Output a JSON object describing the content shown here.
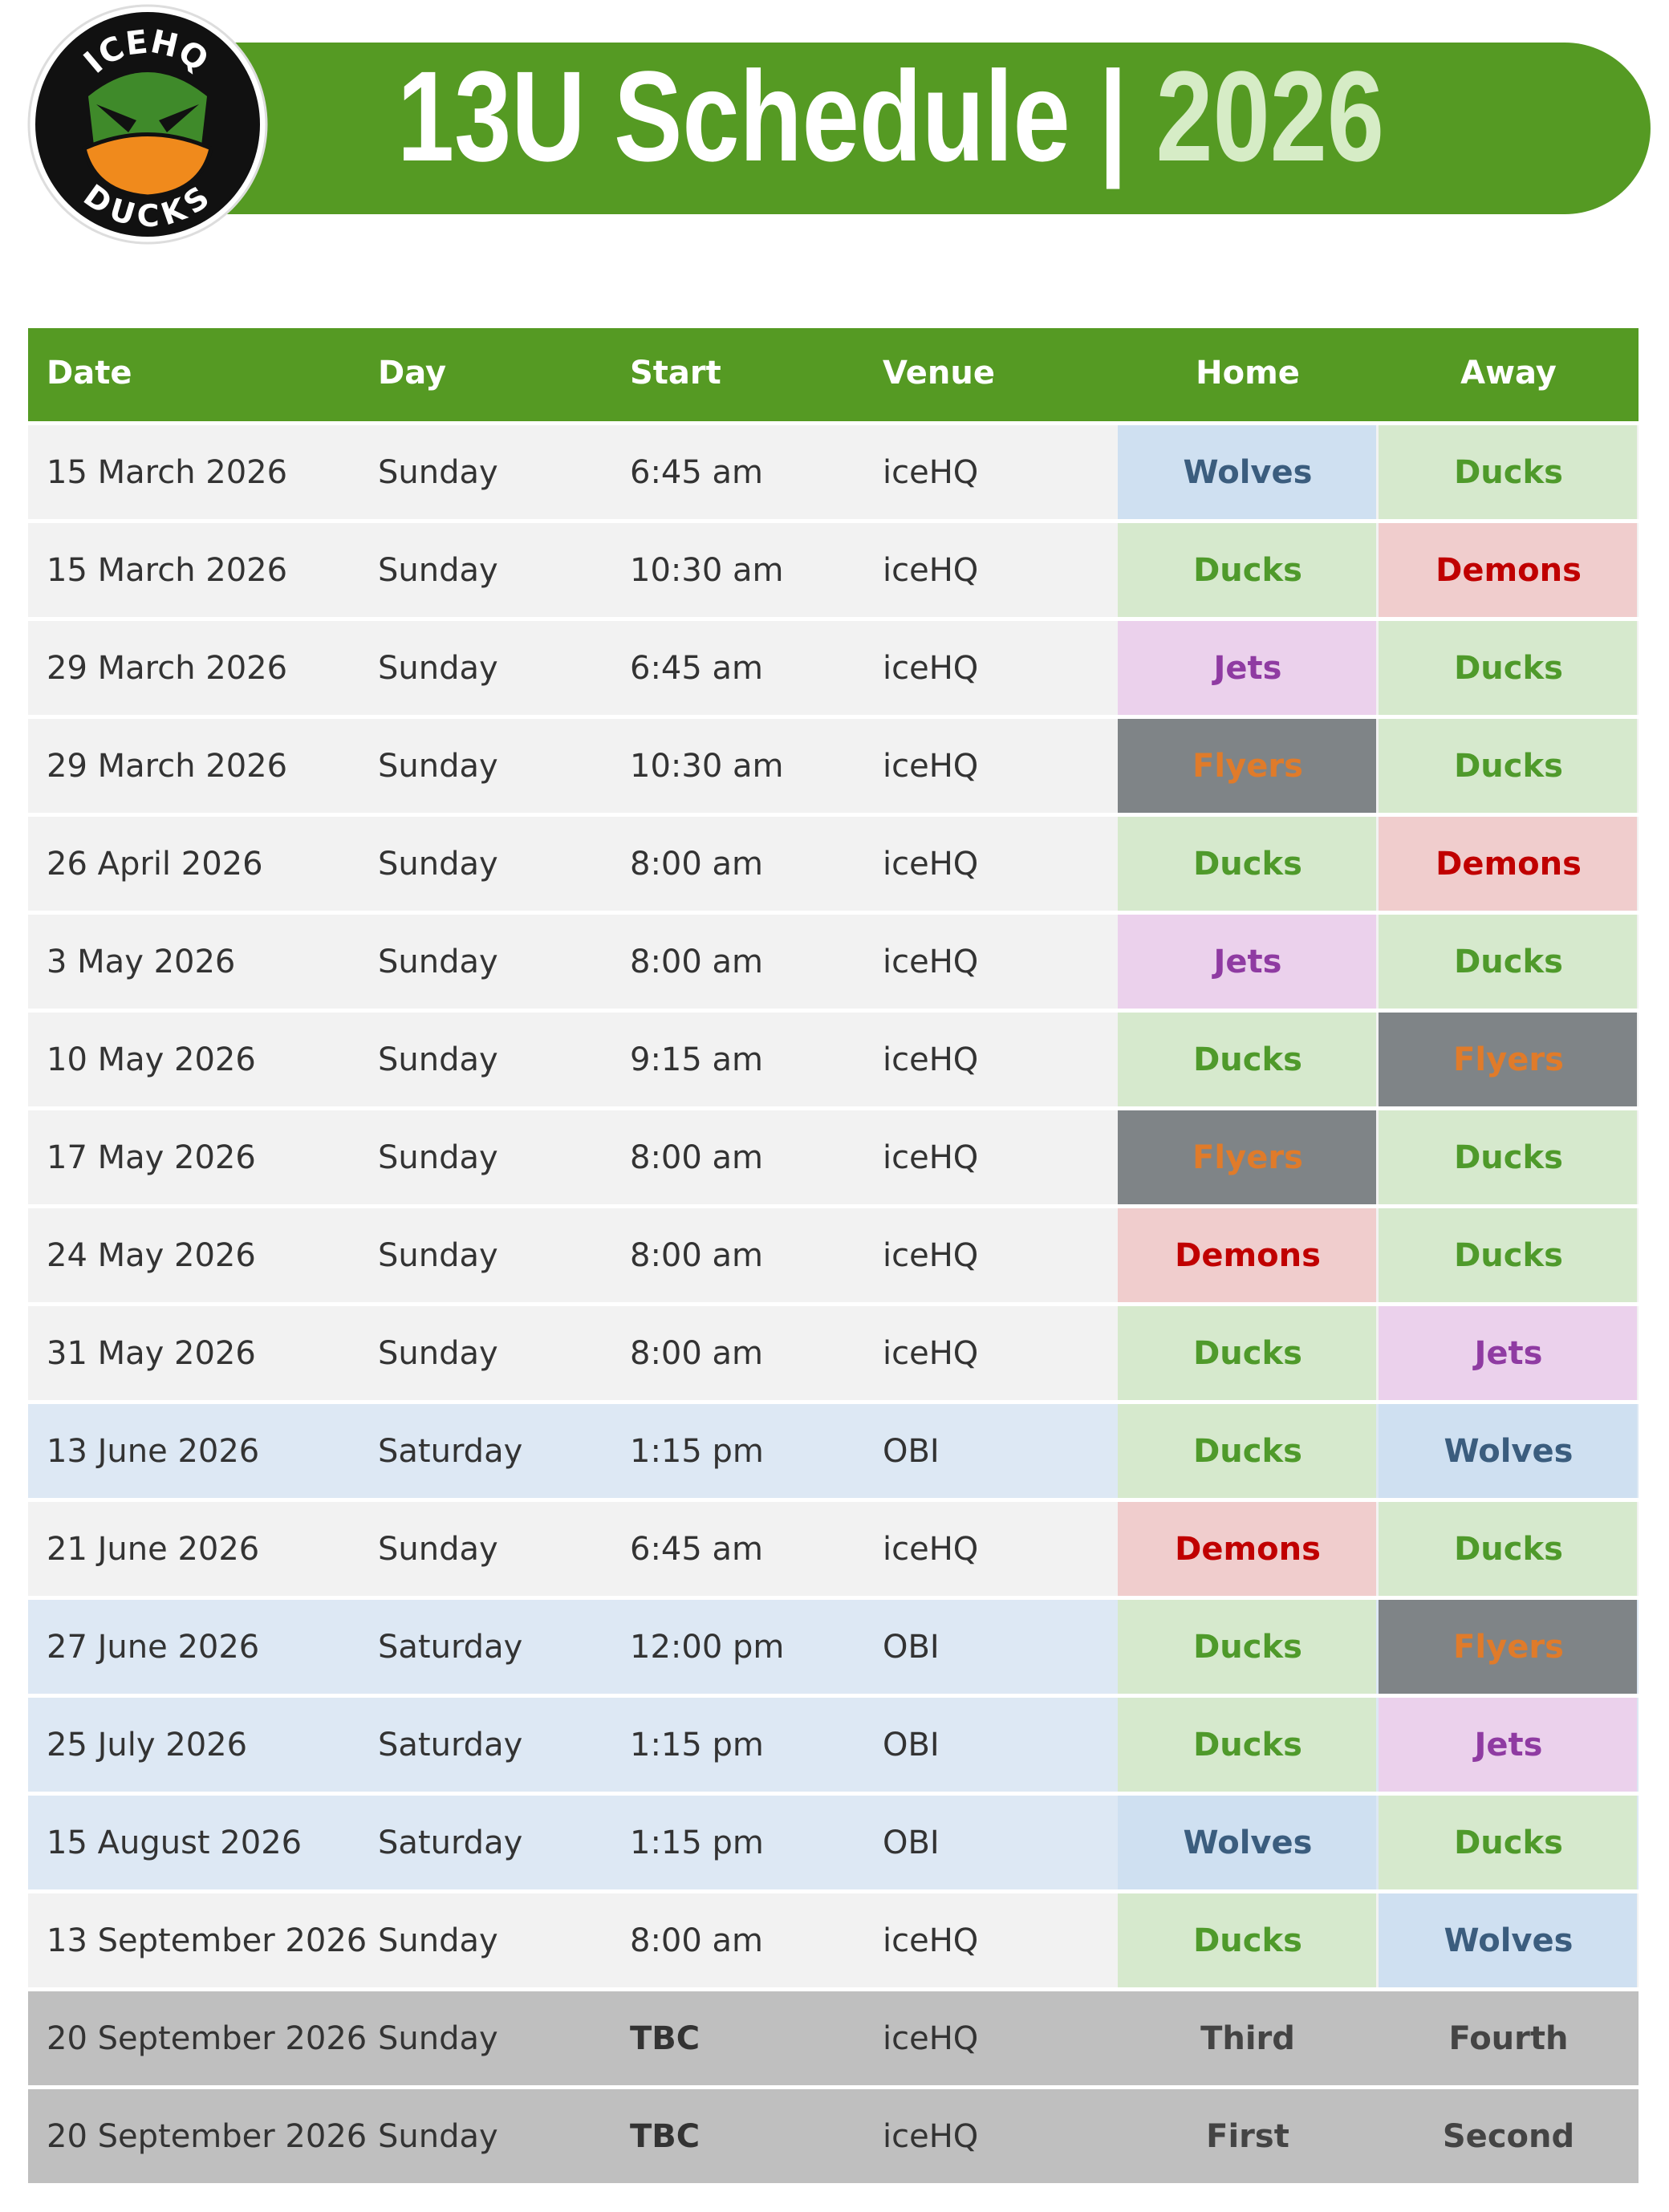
{
  "header": {
    "title_parts": [
      "13U Schedule",
      "|",
      "2026"
    ],
    "logo_top": "ICEHQ",
    "logo_bottom": "DUCKS"
  },
  "team_colors": {
    "Wolves": {
      "bg": "#cfe0f1",
      "fg": "#3b5d7e"
    },
    "Ducks": {
      "bg": "#d6e9cd",
      "fg": "#4f9a2b"
    },
    "Demons": {
      "bg": "#f0cdcd",
      "fg": "#c00000"
    },
    "Jets": {
      "bg": "#ebd1ec",
      "fg": "#8f3ba2"
    },
    "Flyers": {
      "bg": "#7f8487",
      "fg": "#e07b2a"
    }
  },
  "table": {
    "columns": [
      "Date",
      "Day",
      "Start",
      "Venue",
      "Home",
      "Away"
    ],
    "header_bg": "#559a23",
    "rows": [
      {
        "bg": "#f2f2f2",
        "cells": [
          "15 March 2026",
          "Sunday",
          "6:45 am",
          "iceHQ",
          "Wolves",
          "Ducks"
        ]
      },
      {
        "bg": "#f2f2f2",
        "cells": [
          "15 March 2026",
          "Sunday",
          "10:30 am",
          "iceHQ",
          "Ducks",
          "Demons"
        ]
      },
      {
        "bg": "#f2f2f2",
        "cells": [
          "29 March 2026",
          "Sunday",
          "6:45 am",
          "iceHQ",
          "Jets",
          "Ducks"
        ]
      },
      {
        "bg": "#f2f2f2",
        "cells": [
          "29 March 2026",
          "Sunday",
          "10:30 am",
          "iceHQ",
          "Flyers",
          "Ducks"
        ]
      },
      {
        "bg": "#f2f2f2",
        "cells": [
          "26 April 2026",
          "Sunday",
          "8:00 am",
          "iceHQ",
          "Ducks",
          "Demons"
        ]
      },
      {
        "bg": "#f2f2f2",
        "cells": [
          "3 May 2026",
          "Sunday",
          "8:00 am",
          "iceHQ",
          "Jets",
          "Ducks"
        ]
      },
      {
        "bg": "#f2f2f2",
        "cells": [
          "10 May 2026",
          "Sunday",
          "9:15 am",
          "iceHQ",
          "Ducks",
          "Flyers"
        ]
      },
      {
        "bg": "#f2f2f2",
        "cells": [
          "17 May 2026",
          "Sunday",
          "8:00 am",
          "iceHQ",
          "Flyers",
          "Ducks"
        ]
      },
      {
        "bg": "#f2f2f2",
        "cells": [
          "24 May 2026",
          "Sunday",
          "8:00 am",
          "iceHQ",
          "Demons",
          "Ducks"
        ]
      },
      {
        "bg": "#f2f2f2",
        "cells": [
          "31 May 2026",
          "Sunday",
          "8:00 am",
          "iceHQ",
          "Ducks",
          "Jets"
        ]
      },
      {
        "bg": "#dde8f4",
        "cells": [
          "13 June 2026",
          "Saturday",
          "1:15 pm",
          "OBI",
          "Ducks",
          "Wolves"
        ]
      },
      {
        "bg": "#f2f2f2",
        "cells": [
          "21 June 2026",
          "Sunday",
          "6:45 am",
          "iceHQ",
          "Demons",
          "Ducks"
        ]
      },
      {
        "bg": "#dde8f4",
        "cells": [
          "27 June 2026",
          "Saturday",
          "12:00 pm",
          "OBI",
          "Ducks",
          "Flyers"
        ]
      },
      {
        "bg": "#dde8f4",
        "cells": [
          "25 July 2026",
          "Saturday",
          "1:15 pm",
          "OBI",
          "Ducks",
          "Jets"
        ]
      },
      {
        "bg": "#dde8f4",
        "cells": [
          "15 August 2026",
          "Saturday",
          "1:15 pm",
          "OBI",
          "Wolves",
          "Ducks"
        ]
      },
      {
        "bg": "#f2f2f2",
        "cells": [
          "13 September 2026",
          "Sunday",
          "8:00 am",
          "iceHQ",
          "Ducks",
          "Wolves"
        ]
      },
      {
        "bg": "#bfbfbf",
        "cells": [
          "20 September 2026",
          "Sunday",
          "TBC",
          "iceHQ",
          "Third",
          "Fourth"
        ]
      },
      {
        "bg": "#bfbfbf",
        "cells": [
          "20 September 2026",
          "Sunday",
          "TBC",
          "iceHQ",
          "First",
          "Second"
        ]
      }
    ]
  }
}
